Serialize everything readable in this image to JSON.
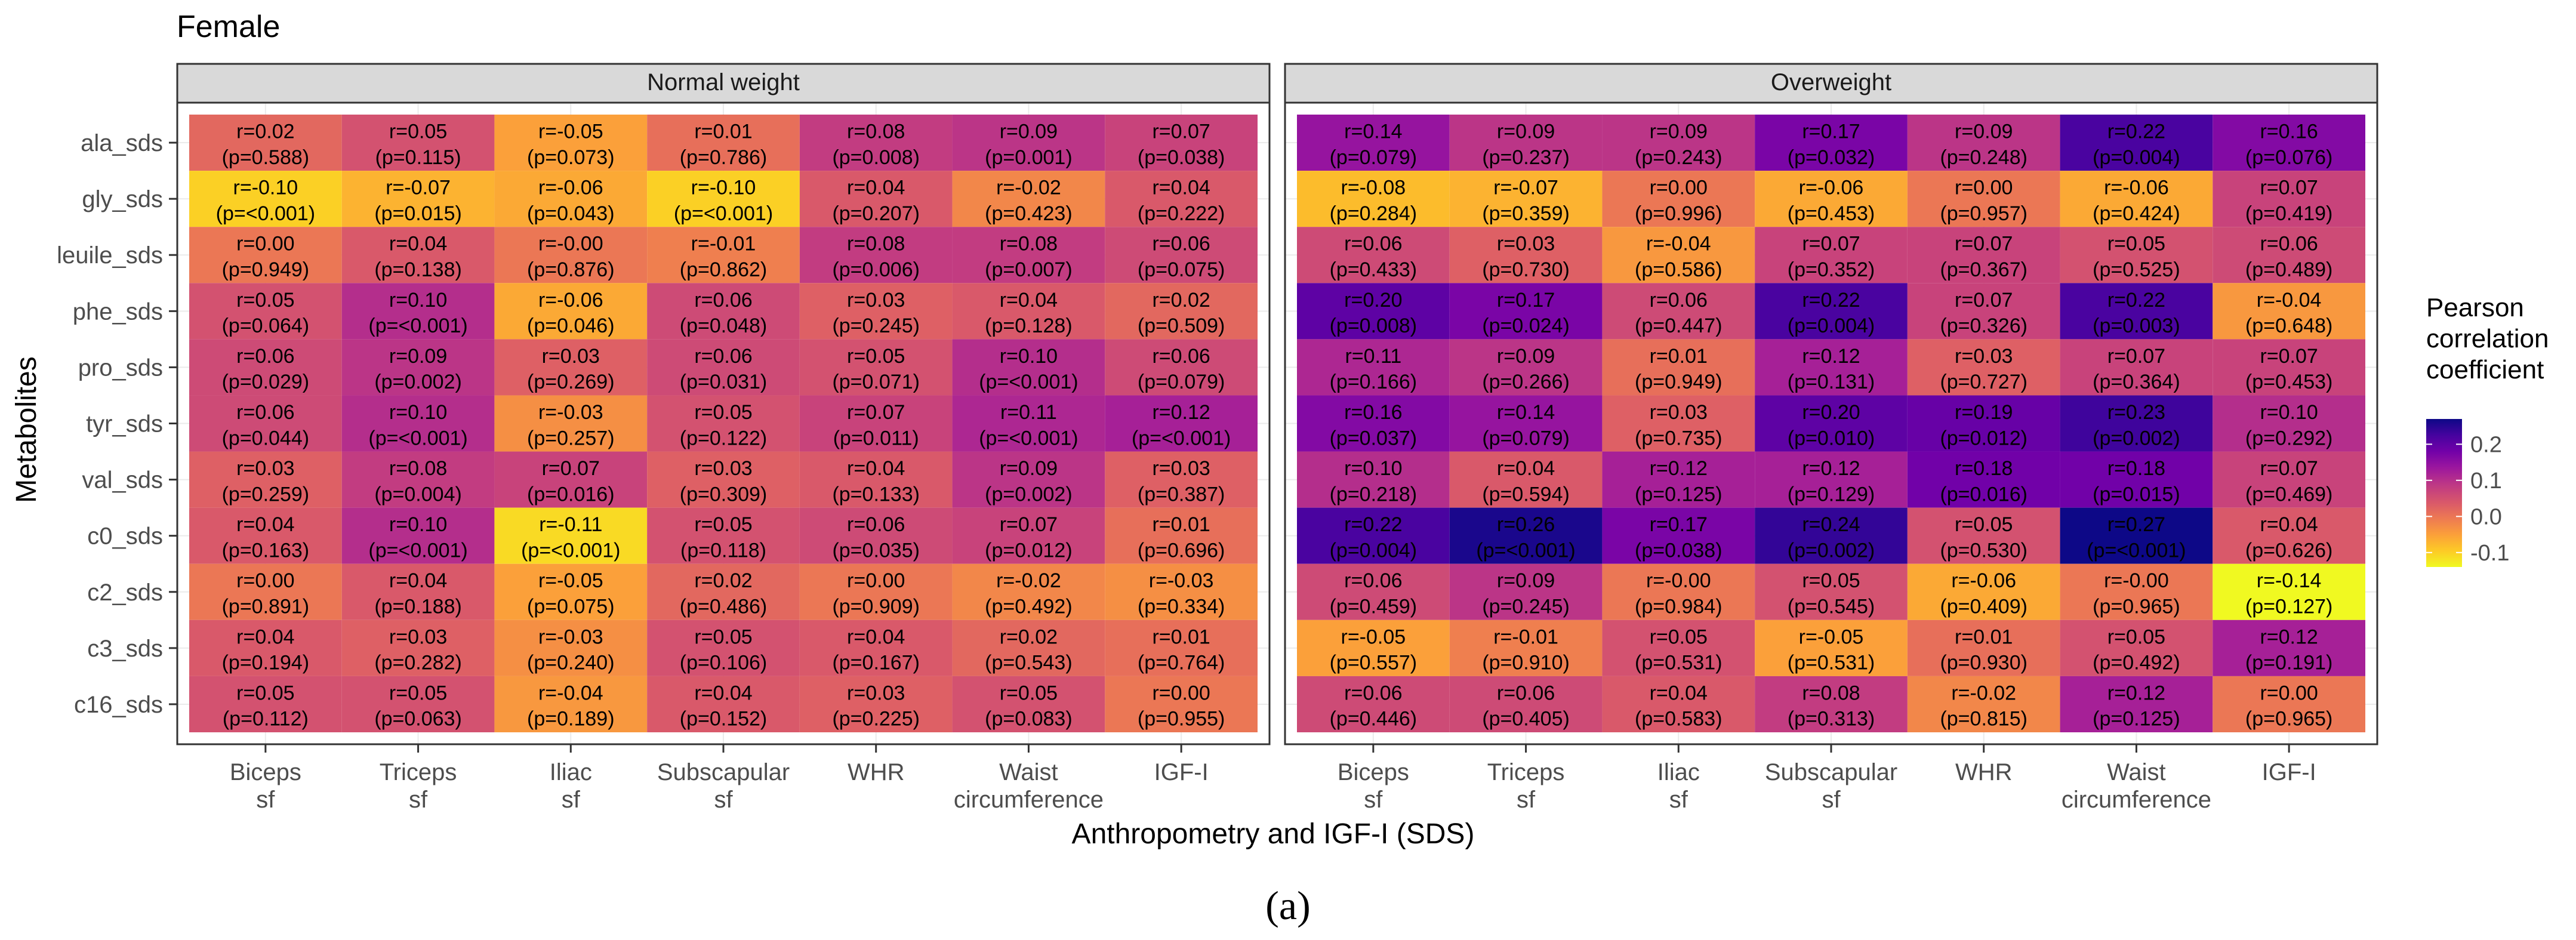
{
  "chart_data": {
    "type": "heatmap",
    "title": "Female",
    "xlabel": "Anthropometry and IGF-I (SDS)",
    "ylabel": "Metabolites",
    "caption": "(a)",
    "x_categories": [
      "Biceps\nsf",
      "Triceps\nsf",
      "Iliac\nsf",
      "Subscapular\nsf",
      "WHR",
      "Waist\ncircumference",
      "IGF-I"
    ],
    "y_categories": [
      "ala_sds",
      "gly_sds",
      "leuile_sds",
      "phe_sds",
      "pro_sds",
      "tyr_sds",
      "val_sds",
      "c0_sds",
      "c2_sds",
      "c3_sds",
      "c16_sds"
    ],
    "legend": {
      "title": "Pearson\ncorrelation\ncoefficient",
      "position": "right",
      "range": [
        -0.14,
        0.27
      ],
      "ticks": [
        0.2,
        0.1,
        0.0,
        -0.1
      ],
      "tick_labels": [
        "0.2",
        "0.1",
        "0.0",
        "-0.1"
      ]
    },
    "panels": [
      {
        "name": "Normal weight",
        "r": [
          [
            "0.02",
            "0.05",
            "-0.05",
            "0.01",
            "0.08",
            "0.09",
            "0.07"
          ],
          [
            "-0.10",
            "-0.07",
            "-0.06",
            "-0.10",
            "0.04",
            "-0.02",
            "0.04"
          ],
          [
            "0.00",
            "0.04",
            "-0.00",
            "-0.01",
            "0.08",
            "0.08",
            "0.06"
          ],
          [
            "0.05",
            "0.10",
            "-0.06",
            "0.06",
            "0.03",
            "0.04",
            "0.02"
          ],
          [
            "0.06",
            "0.09",
            "0.03",
            "0.06",
            "0.05",
            "0.10",
            "0.06"
          ],
          [
            "0.06",
            "0.10",
            "-0.03",
            "0.05",
            "0.07",
            "0.11",
            "0.12"
          ],
          [
            "0.03",
            "0.08",
            "0.07",
            "0.03",
            "0.04",
            "0.09",
            "0.03"
          ],
          [
            "0.04",
            "0.10",
            "-0.11",
            "0.05",
            "0.06",
            "0.07",
            "0.01"
          ],
          [
            "0.00",
            "0.04",
            "-0.05",
            "0.02",
            "0.00",
            "-0.02",
            "-0.03"
          ],
          [
            "0.04",
            "0.03",
            "-0.03",
            "0.05",
            "0.04",
            "0.02",
            "0.01"
          ],
          [
            "0.05",
            "0.05",
            "-0.04",
            "0.04",
            "0.03",
            "0.05",
            "0.00"
          ]
        ],
        "p": [
          [
            "0.588",
            "0.115",
            "0.073",
            "0.786",
            "0.008",
            "0.001",
            "0.038"
          ],
          [
            "<0.001",
            "0.015",
            "0.043",
            "<0.001",
            "0.207",
            "0.423",
            "0.222"
          ],
          [
            "0.949",
            "0.138",
            "0.876",
            "0.862",
            "0.006",
            "0.007",
            "0.075"
          ],
          [
            "0.064",
            "<0.001",
            "0.046",
            "0.048",
            "0.245",
            "0.128",
            "0.509"
          ],
          [
            "0.029",
            "0.002",
            "0.269",
            "0.031",
            "0.071",
            "<0.001",
            "0.079"
          ],
          [
            "0.044",
            "<0.001",
            "0.257",
            "0.122",
            "0.011",
            "<0.001",
            "<0.001"
          ],
          [
            "0.259",
            "0.004",
            "0.016",
            "0.309",
            "0.133",
            "0.002",
            "0.387"
          ],
          [
            "0.163",
            "<0.001",
            "<0.001",
            "0.118",
            "0.035",
            "0.012",
            "0.696"
          ],
          [
            "0.891",
            "0.188",
            "0.075",
            "0.486",
            "0.909",
            "0.492",
            "0.334"
          ],
          [
            "0.194",
            "0.282",
            "0.240",
            "0.106",
            "0.167",
            "0.543",
            "0.764"
          ],
          [
            "0.112",
            "0.063",
            "0.189",
            "0.152",
            "0.225",
            "0.083",
            "0.955"
          ]
        ]
      },
      {
        "name": "Overweight",
        "r": [
          [
            "0.14",
            "0.09",
            "0.09",
            "0.17",
            "0.09",
            "0.22",
            "0.16"
          ],
          [
            "-0.08",
            "-0.07",
            "0.00",
            "-0.06",
            "0.00",
            "-0.06",
            "0.07"
          ],
          [
            "0.06",
            "0.03",
            "-0.04",
            "0.07",
            "0.07",
            "0.05",
            "0.06"
          ],
          [
            "0.20",
            "0.17",
            "0.06",
            "0.22",
            "0.07",
            "0.22",
            "-0.04"
          ],
          [
            "0.11",
            "0.09",
            "0.01",
            "0.12",
            "0.03",
            "0.07",
            "0.07"
          ],
          [
            "0.16",
            "0.14",
            "0.03",
            "0.20",
            "0.19",
            "0.23",
            "0.10"
          ],
          [
            "0.10",
            "0.04",
            "0.12",
            "0.12",
            "0.18",
            "0.18",
            "0.07"
          ],
          [
            "0.22",
            "0.26",
            "0.17",
            "0.24",
            "0.05",
            "0.27",
            "0.04"
          ],
          [
            "0.06",
            "0.09",
            "-0.00",
            "0.05",
            "-0.06",
            "-0.00",
            "-0.14"
          ],
          [
            "-0.05",
            "-0.01",
            "0.05",
            "-0.05",
            "0.01",
            "0.05",
            "0.12"
          ],
          [
            "0.06",
            "0.06",
            "0.04",
            "0.08",
            "-0.02",
            "0.12",
            "0.00"
          ]
        ],
        "p": [
          [
            "0.079",
            "0.237",
            "0.243",
            "0.032",
            "0.248",
            "0.004",
            "0.076"
          ],
          [
            "0.284",
            "0.359",
            "0.996",
            "0.453",
            "0.957",
            "0.424",
            "0.419"
          ],
          [
            "0.433",
            "0.730",
            "0.586",
            "0.352",
            "0.367",
            "0.525",
            "0.489"
          ],
          [
            "0.008",
            "0.024",
            "0.447",
            "0.004",
            "0.326",
            "0.003",
            "0.648"
          ],
          [
            "0.166",
            "0.266",
            "0.949",
            "0.131",
            "0.727",
            "0.364",
            "0.453"
          ],
          [
            "0.037",
            "0.079",
            "0.735",
            "0.010",
            "0.012",
            "0.002",
            "0.292"
          ],
          [
            "0.218",
            "0.594",
            "0.125",
            "0.129",
            "0.016",
            "0.015",
            "0.469"
          ],
          [
            "0.004",
            "<0.001",
            "0.038",
            "0.002",
            "0.530",
            "<0.001",
            "0.626"
          ],
          [
            "0.459",
            "0.245",
            "0.984",
            "0.545",
            "0.409",
            "0.965",
            "0.127"
          ],
          [
            "0.557",
            "0.910",
            "0.531",
            "0.531",
            "0.930",
            "0.492",
            "0.191"
          ],
          [
            "0.446",
            "0.405",
            "0.583",
            "0.313",
            "0.815",
            "0.125",
            "0.965"
          ]
        ]
      }
    ]
  },
  "colors": {
    "scale": [
      "#f0f921",
      "#fdca26",
      "#fb9f3a",
      "#ed7953",
      "#d8576b",
      "#bd3786",
      "#9c179e",
      "#7201a8",
      "#46039f",
      "#0d0887"
    ],
    "strip_fill": "#d9d9d9",
    "panel_border": "#333333",
    "grid": "#ebebeb",
    "text": "#000000",
    "axis_text": "#4d4d4d"
  }
}
